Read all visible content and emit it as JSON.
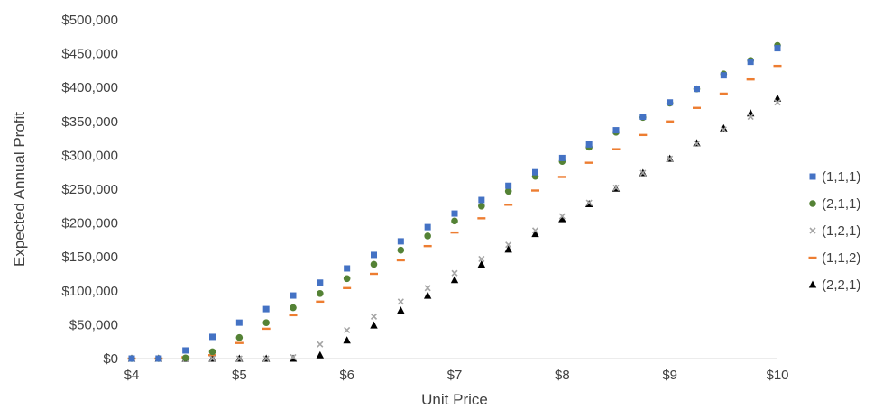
{
  "chart_data": {
    "type": "scatter",
    "title": "",
    "xlabel": "Unit Price",
    "ylabel": "Expected Annual Profit",
    "xlim": [
      4,
      10
    ],
    "ylim": [
      0,
      500000
    ],
    "x_ticks": [
      {
        "value": 4,
        "label": "$4"
      },
      {
        "value": 5,
        "label": "$5"
      },
      {
        "value": 6,
        "label": "$6"
      },
      {
        "value": 7,
        "label": "$7"
      },
      {
        "value": 8,
        "label": "$8"
      },
      {
        "value": 9,
        "label": "$9"
      },
      {
        "value": 10,
        "label": "$10"
      }
    ],
    "y_ticks": [
      {
        "value": 0,
        "label": "$0"
      },
      {
        "value": 50000,
        "label": "$50,000"
      },
      {
        "value": 100000,
        "label": "$100,000"
      },
      {
        "value": 150000,
        "label": "$150,000"
      },
      {
        "value": 200000,
        "label": "$200,000"
      },
      {
        "value": 250000,
        "label": "$250,000"
      },
      {
        "value": 300000,
        "label": "$300,000"
      },
      {
        "value": 350000,
        "label": "$350,000"
      },
      {
        "value": 400000,
        "label": "$400,000"
      },
      {
        "value": 450000,
        "label": "$450,000"
      },
      {
        "value": 500000,
        "label": "$500,000"
      }
    ],
    "grid": false,
    "legend_position": "right",
    "x": [
      4,
      4.25,
      4.5,
      4.75,
      5,
      5.25,
      5.5,
      5.75,
      6,
      6.25,
      6.5,
      6.75,
      7,
      7.25,
      7.5,
      7.75,
      8,
      8.25,
      8.5,
      8.75,
      9,
      9.25,
      9.5,
      9.75,
      10
    ],
    "series": [
      {
        "name": "(1,1,1)",
        "marker": "square",
        "color": "#4472C4",
        "values": [
          0,
          0,
          12000,
          32000,
          53000,
          73000,
          93000,
          112000,
          133000,
          153000,
          173000,
          194000,
          214000,
          234000,
          255000,
          275000,
          296000,
          316000,
          337000,
          357000,
          378000,
          398000,
          418000,
          438000,
          458000
        ]
      },
      {
        "name": "(2,1,1)",
        "marker": "circle",
        "color": "#548235",
        "values": [
          0,
          0,
          1000,
          10000,
          31000,
          53000,
          75000,
          96000,
          118000,
          139000,
          160000,
          181000,
          203000,
          225000,
          247000,
          269000,
          291000,
          312000,
          334000,
          356000,
          377000,
          398000,
          420000,
          440000,
          462000
        ]
      },
      {
        "name": "(1,2,1)",
        "marker": "x",
        "color": "#A5A5A5",
        "values": [
          0,
          0,
          0,
          0,
          0,
          0,
          2000,
          21000,
          42000,
          62000,
          84000,
          104000,
          126000,
          147000,
          168000,
          189000,
          210000,
          230000,
          252000,
          274000,
          295000,
          317000,
          338000,
          357000,
          378000
        ]
      },
      {
        "name": "(1,1,2)",
        "marker": "dash",
        "color": "#ED7D31",
        "values": [
          0,
          0,
          2000,
          5000,
          23000,
          44000,
          64000,
          84000,
          104000,
          125000,
          145000,
          166000,
          186000,
          207000,
          227000,
          248000,
          268000,
          289000,
          309000,
          330000,
          350000,
          370000,
          391000,
          412000,
          432000
        ]
      },
      {
        "name": "(2,2,1)",
        "marker": "triangle",
        "color": "#000000",
        "values": [
          0,
          0,
          0,
          0,
          0,
          0,
          0,
          5000,
          27000,
          49000,
          71000,
          93000,
          116000,
          139000,
          161000,
          184000,
          206000,
          228000,
          251000,
          274000,
          295000,
          318000,
          340000,
          362000,
          384000
        ]
      }
    ]
  }
}
